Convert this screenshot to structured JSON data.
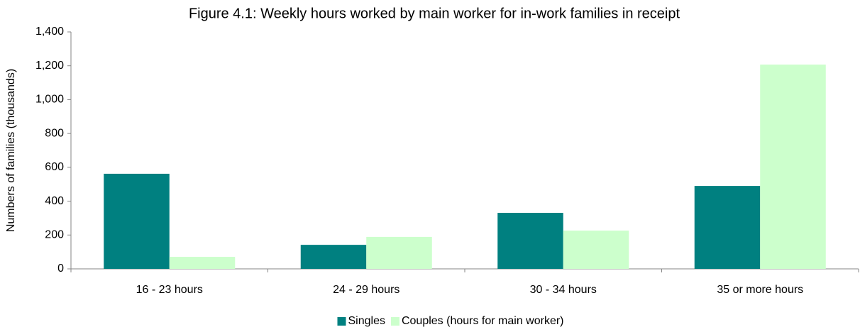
{
  "chart_data": {
    "type": "bar",
    "title": "Figure 4.1: Weekly hours worked by main worker for in-work families in receipt",
    "y_label": "Numbers of families (thousands)",
    "categories": [
      "16 - 23 hours",
      "24 - 29 hours",
      "30 - 34 hours",
      "35 or more hours"
    ],
    "series": [
      {
        "name": "Singles",
        "color": "#008080",
        "values": [
          562,
          142,
          331,
          490
        ]
      },
      {
        "name": "Couples (hours for main worker)",
        "color": "#ccffcc",
        "values": [
          71,
          189,
          226,
          1207
        ]
      }
    ],
    "ylim": [
      0,
      1400
    ],
    "yticks": [
      0,
      200,
      400,
      600,
      800,
      {
        "value": 1000,
        "label": "1,000"
      },
      {
        "value": 1200,
        "label": "1,200"
      },
      {
        "value": 1400,
        "label": "1,400"
      }
    ],
    "grid": false,
    "legend": "bottom"
  }
}
